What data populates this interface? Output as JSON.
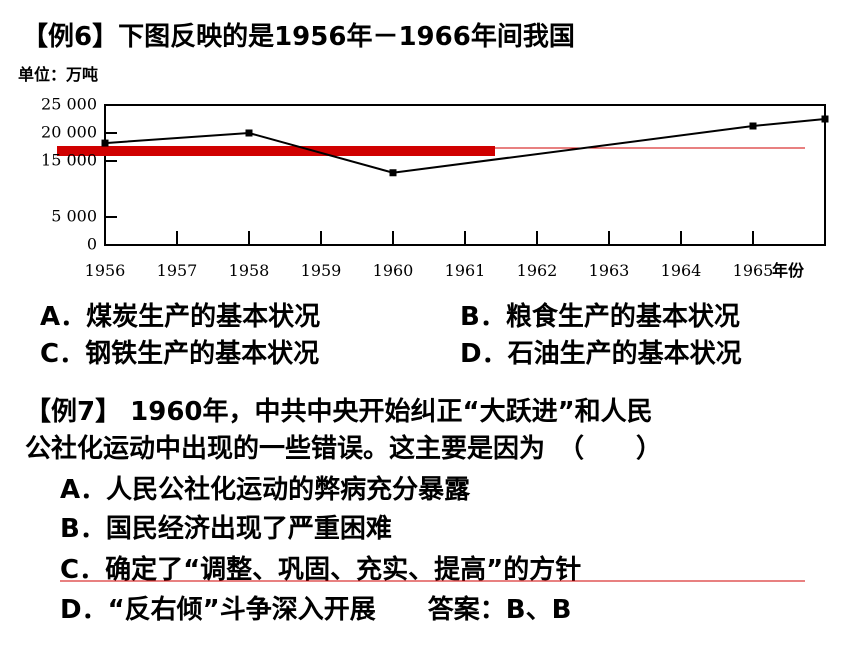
{
  "example6": {
    "title": "【例6】下图反映的是1956年－1966年间我国",
    "options": [
      "A．煤炭生产的基本状况",
      "B．粮食生产的基本状况",
      "C．钢铁生产的基本状况",
      "D．石油生产的基本状况"
    ]
  },
  "chart_data": {
    "type": "line",
    "unit": "单位：万吨",
    "xlabel": "年份",
    "x": [
      1956,
      1958,
      1960,
      1965,
      1966
    ],
    "values": [
      18200,
      20000,
      12900,
      21250,
      22500
    ],
    "color": "#000000",
    "xlim": [
      1956,
      1966
    ],
    "xticks": [
      1956,
      1957,
      1958,
      1959,
      1960,
      1961,
      1962,
      1963,
      1964,
      1965
    ],
    "ylim": [
      0,
      25000
    ],
    "yticks": [
      0,
      {
        "value": 5000,
        "label": "5 000"
      },
      {
        "value": 15000,
        "label": "15 000"
      },
      {
        "value": 20000,
        "label": "20 000"
      },
      {
        "value": 25000,
        "label": "25 000"
      }
    ]
  },
  "example7": {
    "lines": [
      "【例7】 1960年，中共中央开始纠正“大跃进”和人民",
      "公社化运动中出现的一些错误。这主要是因为　（　　）"
    ],
    "options": [
      "A．人民公社化运动的弊病充分暴露",
      "B．国民经济出现了严重困难",
      "C．确定了“调整、巩固、充实、提高”的方针",
      "D．“反右倾”斗争深入开展　　答案：B、B"
    ]
  }
}
